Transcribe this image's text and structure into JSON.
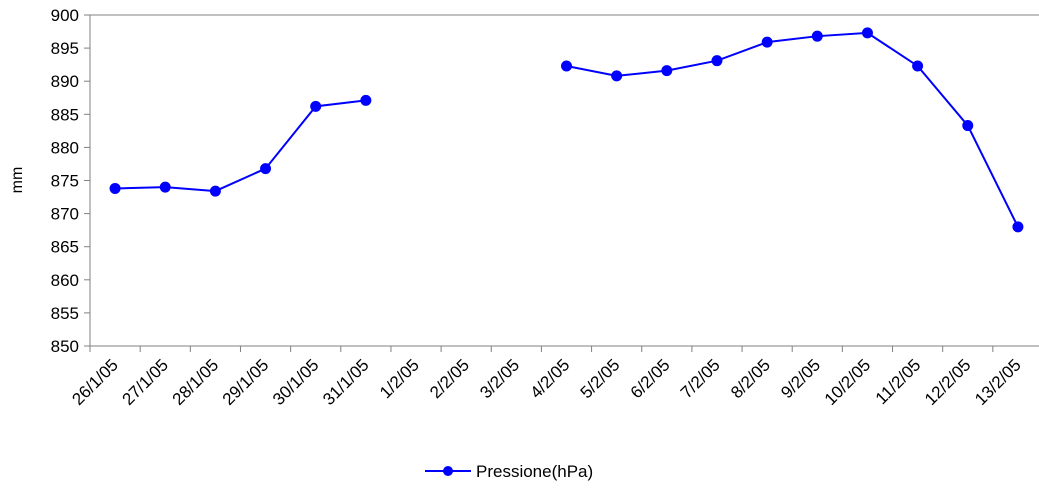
{
  "chart_data": {
    "type": "line",
    "title": "",
    "xlabel": "",
    "ylabel": "mm",
    "ylim": [
      850,
      900
    ],
    "y_ticks": [
      850,
      855,
      860,
      865,
      870,
      875,
      880,
      885,
      890,
      895,
      900
    ],
    "categories": [
      "26/1/05",
      "27/1/05",
      "28/1/05",
      "29/1/05",
      "30/1/05",
      "31/1/05",
      "1/2/05",
      "2/2/05",
      "3/2/05",
      "4/2/05",
      "5/2/05",
      "6/2/05",
      "7/2/05",
      "8/2/05",
      "9/2/05",
      "10/2/05",
      "11/2/05",
      "12/2/05",
      "13/2/05"
    ],
    "series": [
      {
        "name": "Pressione(hPa)",
        "color": "#0000FF",
        "marker": "circle",
        "values": [
          873.8,
          874.0,
          873.4,
          876.8,
          886.2,
          887.1,
          null,
          null,
          null,
          892.3,
          890.8,
          891.6,
          893.1,
          895.9,
          896.8,
          897.3,
          892.3,
          883.3,
          868.0
        ]
      }
    ],
    "grid": {
      "horizontal_top_line": true,
      "vertical": false
    },
    "legend_position": "bottom-center"
  }
}
